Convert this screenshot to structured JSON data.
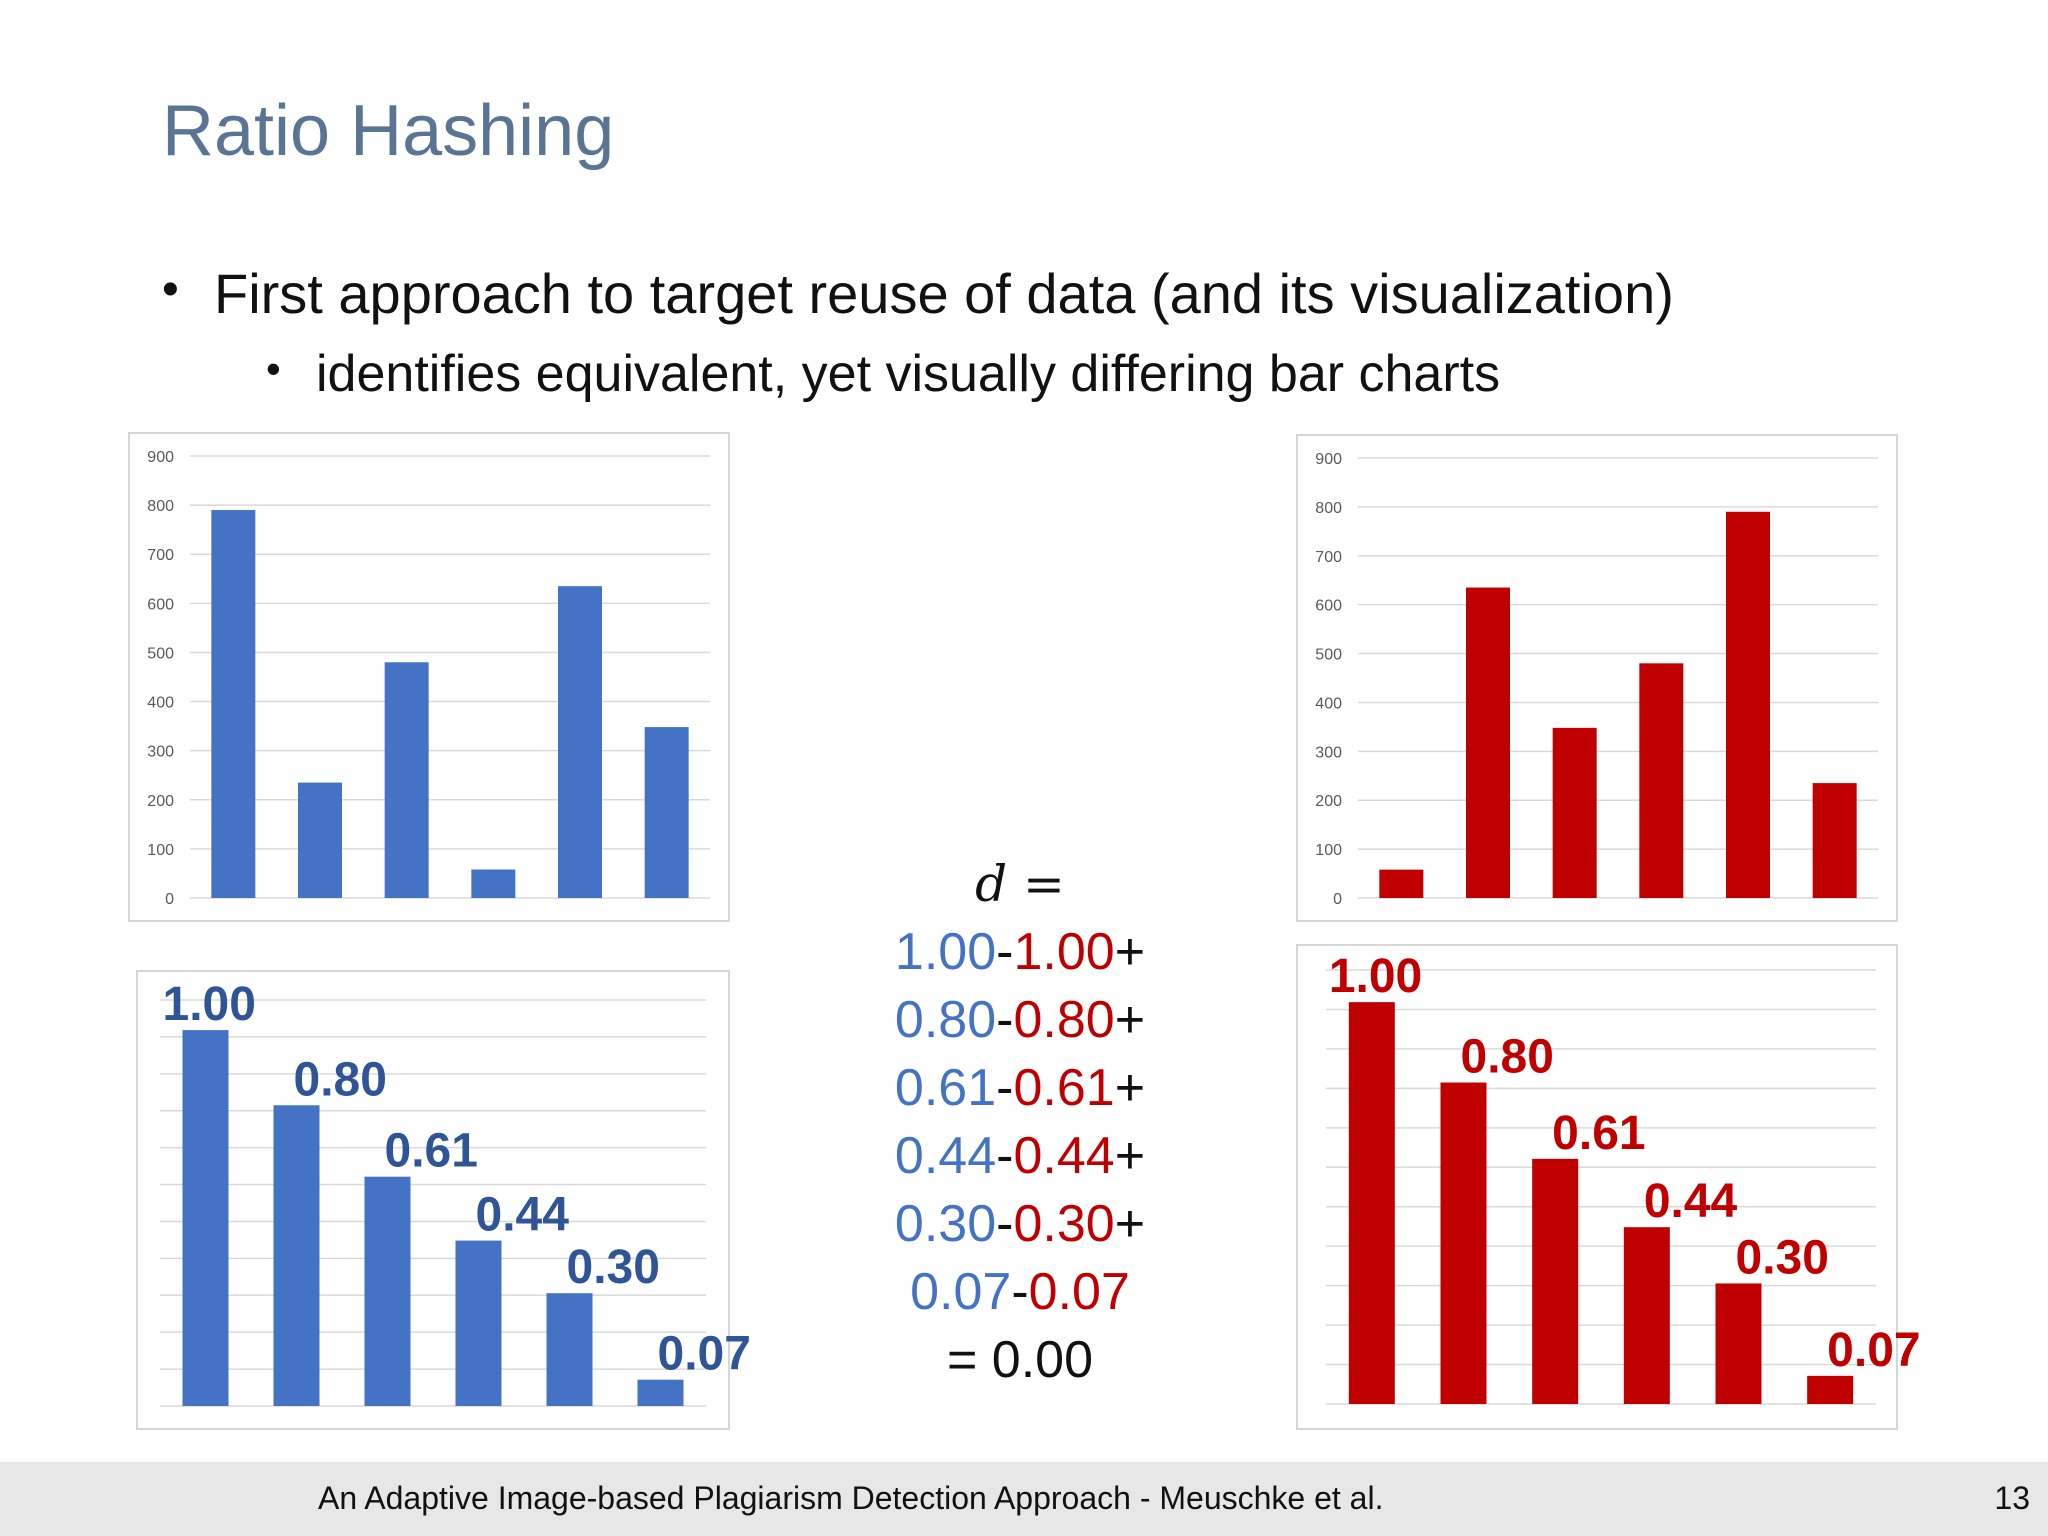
{
  "slide": {
    "title": "Ratio Hashing",
    "bullet1": "First approach to target reuse of data (and its visualization)",
    "bullet2": "identifies equivalent, yet visually differing bar charts",
    "footer": "An Adaptive Image-based Plagiarism Detection Approach - Meuschke et al.",
    "page_number": "13"
  },
  "formula": {
    "d_label": "d",
    "d_eq": "=",
    "terms": [
      {
        "blue": "1.00",
        "sep": "-",
        "red": "1.00",
        "op": "+"
      },
      {
        "blue": "0.80",
        "sep": "-",
        "red": "0.80",
        "op": "+"
      },
      {
        "blue": "0.61",
        "sep": "-",
        "red": "0.61",
        "op": "+"
      },
      {
        "blue": "0.44",
        "sep": "-",
        "red": "0.44",
        "op": "+"
      },
      {
        "blue": "0.30",
        "sep": "-",
        "red": "0.30",
        "op": "+"
      },
      {
        "blue": "0.07",
        "sep": "-",
        "red": "0.07",
        "op": ""
      }
    ],
    "result": "= 0.00"
  },
  "colors": {
    "blue": "#4472c4",
    "red": "#c00000",
    "title": "#5a7594"
  },
  "chart_data": [
    {
      "type": "bar",
      "id": "blue-original",
      "values": [
        790,
        235,
        480,
        58,
        635,
        348
      ],
      "ylim": [
        0,
        900
      ],
      "yticks": [
        "0",
        "100",
        "200",
        "300",
        "400",
        "500",
        "600",
        "700",
        "800",
        "900"
      ],
      "color": "#4472c4",
      "grid": true
    },
    {
      "type": "bar",
      "id": "red-original",
      "values": [
        58,
        635,
        348,
        480,
        790,
        235
      ],
      "ylim": [
        0,
        900
      ],
      "yticks": [
        "0",
        "100",
        "200",
        "300",
        "400",
        "500",
        "600",
        "700",
        "800",
        "900"
      ],
      "color": "#c00000",
      "grid": true
    },
    {
      "type": "bar",
      "id": "blue-normalized",
      "values": [
        1.0,
        0.8,
        0.61,
        0.44,
        0.3,
        0.07
      ],
      "data_labels": [
        "1.00",
        "0.80",
        "0.61",
        "0.44",
        "0.30",
        "0.07"
      ],
      "ylim": [
        0,
        1.08
      ],
      "color": "#4472c4",
      "grid": true
    },
    {
      "type": "bar",
      "id": "red-normalized",
      "values": [
        1.0,
        0.8,
        0.61,
        0.44,
        0.3,
        0.07
      ],
      "data_labels": [
        "1.00",
        "0.80",
        "0.61",
        "0.44",
        "0.30",
        "0.07"
      ],
      "ylim": [
        0,
        1.08
      ],
      "color": "#c00000",
      "grid": true
    }
  ]
}
